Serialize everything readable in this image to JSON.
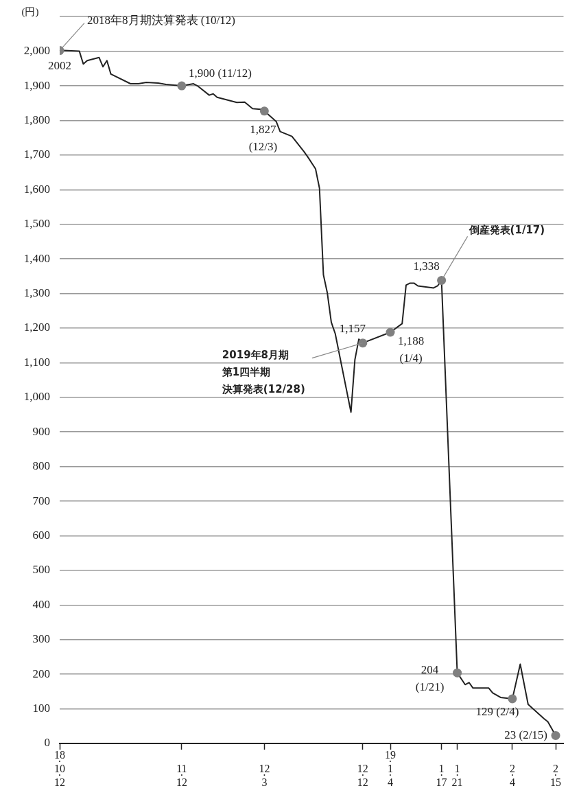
{
  "chart_data": {
    "type": "line",
    "ylabel": "(円)",
    "xlim": [
      "2018-10-12",
      "2019-02-17"
    ],
    "xticks": [
      {
        "value": "2018-10-12",
        "label": "18·10·12"
      },
      {
        "value": "2018-11-12",
        "label": "11·12"
      },
      {
        "value": "2018-12-03",
        "label": "12·3"
      },
      {
        "value": "2018-12-28",
        "label": "12·12"
      },
      {
        "value": "2019-01-04",
        "label": "19·1·4"
      },
      {
        "value": "2019-01-17",
        "label": "1·17"
      },
      {
        "value": "2019-01-21",
        "label": "1·21"
      },
      {
        "value": "2019-02-04",
        "label": "2·4"
      },
      {
        "value": "2019-02-15",
        "label": "2·15"
      }
    ],
    "ylim": [
      0,
      2100
    ],
    "yticks": [
      0,
      100,
      200,
      300,
      400,
      500,
      600,
      700,
      800,
      900,
      {
        "value": 1000,
        "label": "1,000"
      },
      {
        "value": 1100,
        "label": "1,100"
      },
      {
        "value": 1200,
        "label": "1,200"
      },
      {
        "value": 1300,
        "label": "1,300"
      },
      {
        "value": 1400,
        "label": "1,400"
      },
      {
        "value": 1500,
        "label": "1,500"
      },
      {
        "value": 1600,
        "label": "1,600"
      },
      {
        "value": 1700,
        "label": "1,700"
      },
      {
        "value": 1800,
        "label": "1,800"
      },
      {
        "value": 1900,
        "label": "1,900"
      },
      {
        "value": 2000,
        "label": "2,000"
      },
      {
        "value": 2100,
        "label": null
      }
    ],
    "grid": "y",
    "legend": false,
    "series": [
      {
        "type": "line",
        "color": "#222222",
        "marker": "none",
        "x": [
          "2018-10-12",
          "2018-10-13",
          "2018-10-17",
          "2018-10-18",
          "2018-10-19",
          "2018-10-22",
          "2018-10-23",
          "2018-10-24",
          "2018-10-25",
          "2018-10-30",
          "2018-11-01",
          "2018-11-03",
          "2018-11-06",
          "2018-11-08",
          "2018-11-12",
          "2018-11-15",
          "2018-11-16",
          "2018-11-19",
          "2018-11-20",
          "2018-11-21",
          "2018-11-26",
          "2018-11-28",
          "2018-11-30",
          "2018-12-02",
          "2018-12-03",
          "2018-12-06",
          "2018-12-07",
          "2018-12-10",
          "2018-12-13",
          "2018-12-14",
          "2018-12-16",
          "2018-12-17",
          "2018-12-18",
          "2018-12-19",
          "2018-12-20",
          "2018-12-21",
          "2018-12-25",
          "2018-12-26",
          "2018-12-27",
          "2018-12-28",
          "2019-01-04",
          "2019-01-07",
          "2019-01-08",
          "2019-01-09",
          "2019-01-10",
          "2019-01-11",
          "2019-01-15",
          "2019-01-16",
          "2019-01-17",
          "2019-01-21",
          "2019-01-23",
          "2019-01-24",
          "2019-01-25",
          "2019-01-29",
          "2019-01-30",
          "2019-02-01",
          "2019-02-04",
          "2019-02-06",
          "2019-02-08",
          "2019-02-12",
          "2019-02-13",
          "2019-02-15"
        ],
        "values": [
          2002,
          2002,
          2000,
          1963,
          1973,
          1982,
          1955,
          1973,
          1934,
          1906,
          1906,
          1910,
          1908,
          1904,
          1900,
          1906,
          1900,
          1873,
          1877,
          1867,
          1852,
          1853,
          1834,
          1832,
          1827,
          1797,
          1768,
          1754,
          1711,
          1695,
          1660,
          1604,
          1354,
          1301,
          1217,
          1184,
          957,
          1109,
          1168,
          1157,
          1188,
          1213,
          1324,
          1330,
          1330,
          1322,
          1316,
          1322,
          1338,
          204,
          170,
          176,
          160,
          160,
          146,
          133,
          129,
          229,
          113,
          72,
          63,
          23
        ]
      },
      {
        "type": "scatter",
        "color": "#808080",
        "marker": "circle",
        "x": [
          "2018-10-12",
          "2018-11-12",
          "2018-12-03",
          "2018-12-28",
          "2019-01-04",
          "2019-01-17",
          "2019-01-21",
          "2019-02-04",
          "2019-02-15"
        ],
        "values": [
          2002,
          1900,
          1827,
          1157,
          1188,
          1338,
          204,
          129,
          23
        ]
      }
    ],
    "annotations": [
      {
        "text": "2018年8月期決算発表 (10/12)",
        "x": "2018-10-12",
        "y": 2002
      },
      {
        "text": "2002",
        "x": "2018-10-12",
        "y": 2002
      },
      {
        "text": "1,900 (11/12)",
        "x": "2018-11-12",
        "y": 1900
      },
      {
        "text": "1,827\n(12/3)",
        "x": "2018-12-03",
        "y": 1827
      },
      {
        "text": "1,157",
        "x": "2018-12-28",
        "y": 1157
      },
      {
        "text": "2019年8月期第1四半期決算発表(12/28)",
        "x": "2018-12-28",
        "y": 1157
      },
      {
        "text": "1,188\n(1/4)",
        "x": "2019-01-04",
        "y": 1188
      },
      {
        "text": "1,338",
        "x": "2019-01-17",
        "y": 1338
      },
      {
        "text": "倒産発表(1/17)",
        "x": "2019-01-17",
        "y": 1338
      },
      {
        "text": "204\n(1/21)",
        "x": "2019-01-21",
        "y": 204
      },
      {
        "text": "129 (2/4)",
        "x": "2019-02-04",
        "y": 129
      },
      {
        "text": "23 (2/15)",
        "x": "2019-02-15",
        "y": 23
      }
    ]
  }
}
